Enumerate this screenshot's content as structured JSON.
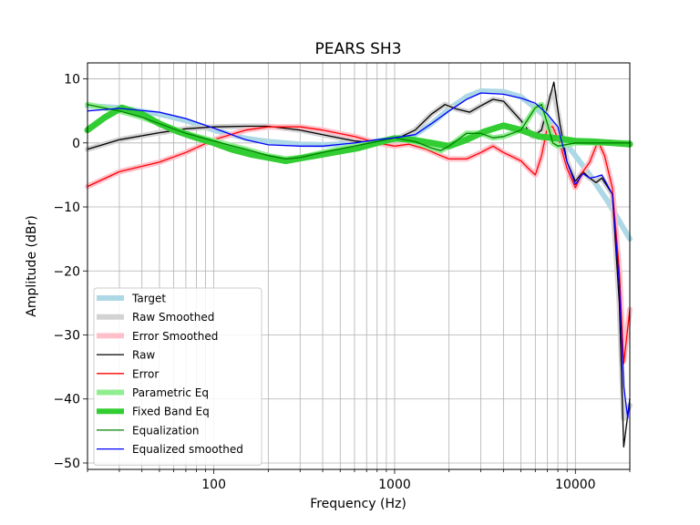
{
  "chart_data": {
    "type": "line",
    "title": "PEARS SH3",
    "xlabel": "Frequency (Hz)",
    "ylabel": "Amplitude (dBr)",
    "x_scale": "log",
    "xlim": [
      20,
      20000
    ],
    "ylim": [
      -51,
      12.5
    ],
    "grid": true,
    "legend_position": "lower-left",
    "x_tick_labels": [
      {
        "value": 100,
        "label": "100"
      },
      {
        "value": 1000,
        "label": "1000"
      },
      {
        "value": 10000,
        "label": "10000"
      }
    ],
    "y_tick_labels": [
      {
        "value": 10,
        "label": "10"
      },
      {
        "value": 0,
        "label": "0"
      },
      {
        "value": -10,
        "label": "−10"
      },
      {
        "value": -20,
        "label": "−20"
      },
      {
        "value": -30,
        "label": "−30"
      },
      {
        "value": -40,
        "label": "−40"
      },
      {
        "value": -50,
        "label": "−50"
      }
    ],
    "series": [
      {
        "name": "Target",
        "color": "#add8e6",
        "width": 6,
        "points": [
          [
            20,
            5.8
          ],
          [
            30,
            5.5
          ],
          [
            50,
            4.5
          ],
          [
            70,
            3.5
          ],
          [
            100,
            2.0
          ],
          [
            150,
            0.7
          ],
          [
            200,
            0.2
          ],
          [
            300,
            -0.2
          ],
          [
            400,
            -0.3
          ],
          [
            600,
            -0.1
          ],
          [
            800,
            0.3
          ],
          [
            1000,
            0.7
          ],
          [
            1300,
            1.3
          ],
          [
            1600,
            3.0
          ],
          [
            2000,
            5.3
          ],
          [
            2500,
            7.2
          ],
          [
            3000,
            8.1
          ],
          [
            4000,
            8.0
          ],
          [
            5000,
            7.2
          ],
          [
            6000,
            5.5
          ],
          [
            7000,
            3.8
          ],
          [
            8000,
            1.5
          ],
          [
            10000,
            -2.0
          ],
          [
            12000,
            -5.0
          ],
          [
            15000,
            -9.0
          ],
          [
            20000,
            -15.0
          ]
        ]
      },
      {
        "name": "Raw Smoothed",
        "color": "#d3d3d3",
        "width": 6,
        "points": [
          [
            20,
            -1.0
          ],
          [
            30,
            0.5
          ],
          [
            50,
            1.6
          ],
          [
            70,
            2.2
          ],
          [
            100,
            2.5
          ],
          [
            150,
            2.6
          ],
          [
            200,
            2.6
          ],
          [
            300,
            2.0
          ],
          [
            400,
            1.3
          ],
          [
            600,
            0.3
          ],
          [
            800,
            0.0
          ],
          [
            1000,
            0.5
          ],
          [
            1300,
            2.0
          ],
          [
            1600,
            4.5
          ],
          [
            1900,
            6.0
          ],
          [
            2200,
            5.3
          ],
          [
            2600,
            4.8
          ],
          [
            3000,
            5.8
          ],
          [
            3500,
            6.8
          ],
          [
            4000,
            6.5
          ],
          [
            5000,
            3.5
          ],
          [
            5800,
            1.0
          ],
          [
            6500,
            2.0
          ],
          [
            7200,
            7.0
          ],
          [
            7600,
            8.0
          ],
          [
            8200,
            3.0
          ],
          [
            9000,
            -3.0
          ],
          [
            10000,
            -6.0
          ],
          [
            11000,
            -4.5
          ],
          [
            12000,
            -5.5
          ],
          [
            13000,
            -6.0
          ],
          [
            14000,
            -5.5
          ],
          [
            16000,
            -8.0
          ],
          [
            17500,
            -25.0
          ],
          [
            18500,
            -43.0
          ],
          [
            20000,
            -41.0
          ]
        ]
      },
      {
        "name": "Error Smoothed",
        "color": "#ffc0cb",
        "width": 6,
        "points": [
          [
            20,
            -6.8
          ],
          [
            30,
            -4.5
          ],
          [
            50,
            -3.0
          ],
          [
            70,
            -1.5
          ],
          [
            100,
            0.5
          ],
          [
            150,
            2.0
          ],
          [
            200,
            2.5
          ],
          [
            300,
            2.5
          ],
          [
            400,
            2.0
          ],
          [
            600,
            1.0
          ],
          [
            800,
            0.0
          ],
          [
            1000,
            -0.5
          ],
          [
            1200,
            -0.2
          ],
          [
            1500,
            -1.0
          ],
          [
            1800,
            -2.0
          ],
          [
            2000,
            -2.5
          ],
          [
            2500,
            -2.5
          ],
          [
            3000,
            -1.5
          ],
          [
            3500,
            -0.5
          ],
          [
            4000,
            -1.5
          ],
          [
            5000,
            -2.8
          ],
          [
            5500,
            -4.0
          ],
          [
            6000,
            -5.0
          ],
          [
            6500,
            -2.0
          ],
          [
            7000,
            2.5
          ],
          [
            7500,
            2.5
          ],
          [
            8200,
            0.0
          ],
          [
            9000,
            -4.0
          ],
          [
            10000,
            -7.0
          ],
          [
            11000,
            -4.5
          ],
          [
            12000,
            -3.0
          ],
          [
            13000,
            -0.5
          ],
          [
            13500,
            0.0
          ],
          [
            14500,
            -2.0
          ],
          [
            16000,
            -7.0
          ],
          [
            17500,
            -20.0
          ],
          [
            18500,
            -34.0
          ],
          [
            20000,
            -26.0
          ]
        ]
      },
      {
        "name": "Raw",
        "color": "#000000",
        "width": 1.3,
        "points": [
          [
            20,
            -1.0
          ],
          [
            30,
            0.5
          ],
          [
            50,
            1.6
          ],
          [
            70,
            2.2
          ],
          [
            100,
            2.5
          ],
          [
            150,
            2.6
          ],
          [
            200,
            2.6
          ],
          [
            300,
            2.0
          ],
          [
            400,
            1.3
          ],
          [
            600,
            0.3
          ],
          [
            800,
            0.0
          ],
          [
            1000,
            0.5
          ],
          [
            1300,
            2.0
          ],
          [
            1600,
            4.5
          ],
          [
            1900,
            6.0
          ],
          [
            2200,
            5.3
          ],
          [
            2600,
            4.8
          ],
          [
            3000,
            5.8
          ],
          [
            3500,
            6.8
          ],
          [
            4000,
            6.5
          ],
          [
            5000,
            3.5
          ],
          [
            5800,
            1.0
          ],
          [
            6500,
            2.0
          ],
          [
            7200,
            7.0
          ],
          [
            7600,
            9.5
          ],
          [
            8200,
            3.0
          ],
          [
            9000,
            -3.0
          ],
          [
            10000,
            -6.0
          ],
          [
            11000,
            -4.5
          ],
          [
            12000,
            -5.5
          ],
          [
            13000,
            -6.2
          ],
          [
            14000,
            -5.5
          ],
          [
            16000,
            -8.0
          ],
          [
            17500,
            -25.0
          ],
          [
            18500,
            -47.5
          ],
          [
            20000,
            -40.0
          ]
        ]
      },
      {
        "name": "Error",
        "color": "#ff0000",
        "width": 1.3,
        "points": [
          [
            20,
            -6.8
          ],
          [
            30,
            -4.5
          ],
          [
            50,
            -3.0
          ],
          [
            70,
            -1.5
          ],
          [
            100,
            0.5
          ],
          [
            150,
            2.0
          ],
          [
            200,
            2.5
          ],
          [
            300,
            2.5
          ],
          [
            400,
            2.0
          ],
          [
            600,
            1.0
          ],
          [
            800,
            0.0
          ],
          [
            1000,
            -0.5
          ],
          [
            1200,
            -0.2
          ],
          [
            1500,
            -1.0
          ],
          [
            1800,
            -2.0
          ],
          [
            2000,
            -2.5
          ],
          [
            2500,
            -2.5
          ],
          [
            3000,
            -1.5
          ],
          [
            3500,
            -0.5
          ],
          [
            4000,
            -1.5
          ],
          [
            5000,
            -2.8
          ],
          [
            5500,
            -4.0
          ],
          [
            6000,
            -5.0
          ],
          [
            6500,
            -2.0
          ],
          [
            7000,
            2.5
          ],
          [
            7500,
            2.5
          ],
          [
            8200,
            0.0
          ],
          [
            9000,
            -4.0
          ],
          [
            10000,
            -7.0
          ],
          [
            11000,
            -4.5
          ],
          [
            12000,
            -3.0
          ],
          [
            13000,
            -0.5
          ],
          [
            13500,
            0.0
          ],
          [
            14500,
            -2.0
          ],
          [
            16000,
            -7.0
          ],
          [
            17500,
            -20.0
          ],
          [
            18500,
            -34.5
          ],
          [
            20000,
            -26.0
          ]
        ]
      },
      {
        "name": "Parametric Eq",
        "color": "#90ee90",
        "width": 6,
        "points": [
          [
            20,
            6.0
          ],
          [
            30,
            5.0
          ],
          [
            40,
            4.0
          ],
          [
            50,
            3.0
          ],
          [
            70,
            1.5
          ],
          [
            100,
            0.3
          ],
          [
            150,
            -1.0
          ],
          [
            200,
            -2.0
          ],
          [
            250,
            -2.5
          ],
          [
            300,
            -2.3
          ],
          [
            400,
            -1.5
          ],
          [
            600,
            -0.5
          ],
          [
            800,
            0.2
          ],
          [
            1000,
            0.8
          ],
          [
            1300,
            0.2
          ],
          [
            1600,
            -0.8
          ],
          [
            1800,
            -1.2
          ],
          [
            2000,
            -0.5
          ],
          [
            2500,
            1.5
          ],
          [
            3000,
            1.5
          ],
          [
            3500,
            0.8
          ],
          [
            4000,
            1.0
          ],
          [
            5000,
            2.0
          ],
          [
            6000,
            5.5
          ],
          [
            6500,
            6.0
          ],
          [
            7000,
            3.0
          ],
          [
            7500,
            0.0
          ],
          [
            8000,
            -0.5
          ],
          [
            10000,
            0.0
          ],
          [
            15000,
            0.0
          ],
          [
            20000,
            0.0
          ]
        ]
      },
      {
        "name": "Fixed Band Eq",
        "color": "#32cd32",
        "width": 7,
        "points": [
          [
            20,
            2.0
          ],
          [
            25,
            4.0
          ],
          [
            31,
            5.5
          ],
          [
            40,
            4.5
          ],
          [
            50,
            3.0
          ],
          [
            63,
            1.8
          ],
          [
            80,
            0.8
          ],
          [
            100,
            0.0
          ],
          [
            125,
            -1.0
          ],
          [
            160,
            -1.8
          ],
          [
            200,
            -2.3
          ],
          [
            250,
            -2.8
          ],
          [
            315,
            -2.3
          ],
          [
            400,
            -1.8
          ],
          [
            500,
            -1.3
          ],
          [
            630,
            -0.8
          ],
          [
            800,
            0.0
          ],
          [
            1000,
            0.7
          ],
          [
            1250,
            0.5
          ],
          [
            1600,
            0.0
          ],
          [
            2000,
            -0.5
          ],
          [
            2500,
            0.5
          ],
          [
            3150,
            1.8
          ],
          [
            4000,
            2.7
          ],
          [
            5000,
            2.0
          ],
          [
            6300,
            1.0
          ],
          [
            8000,
            0.7
          ],
          [
            10000,
            0.3
          ],
          [
            12500,
            0.2
          ],
          [
            16000,
            0.0
          ],
          [
            20000,
            -0.2
          ]
        ]
      },
      {
        "name": "Equalization",
        "color": "#008000",
        "width": 1.3,
        "points": [
          [
            20,
            6.0
          ],
          [
            30,
            5.0
          ],
          [
            40,
            4.0
          ],
          [
            50,
            3.0
          ],
          [
            70,
            1.5
          ],
          [
            100,
            0.3
          ],
          [
            150,
            -1.0
          ],
          [
            200,
            -2.0
          ],
          [
            250,
            -2.5
          ],
          [
            300,
            -2.3
          ],
          [
            400,
            -1.5
          ],
          [
            600,
            -0.5
          ],
          [
            800,
            0.2
          ],
          [
            1000,
            0.8
          ],
          [
            1300,
            0.2
          ],
          [
            1600,
            -0.8
          ],
          [
            1800,
            -1.2
          ],
          [
            2000,
            -0.5
          ],
          [
            2500,
            1.5
          ],
          [
            3000,
            1.5
          ],
          [
            3500,
            0.8
          ],
          [
            4000,
            1.0
          ],
          [
            5000,
            2.0
          ],
          [
            6000,
            5.5
          ],
          [
            6500,
            6.0
          ],
          [
            7000,
            3.0
          ],
          [
            7500,
            0.0
          ],
          [
            8000,
            -0.5
          ],
          [
            10000,
            0.0
          ],
          [
            15000,
            0.0
          ],
          [
            20000,
            0.0
          ]
        ]
      },
      {
        "name": "Equalized smoothed",
        "color": "#0000ff",
        "width": 1.3,
        "points": [
          [
            20,
            5.0
          ],
          [
            30,
            5.4
          ],
          [
            50,
            4.8
          ],
          [
            70,
            3.8
          ],
          [
            100,
            2.3
          ],
          [
            150,
            0.5
          ],
          [
            200,
            -0.3
          ],
          [
            300,
            -0.5
          ],
          [
            400,
            -0.5
          ],
          [
            600,
            0.0
          ],
          [
            800,
            0.5
          ],
          [
            1000,
            0.8
          ],
          [
            1300,
            1.3
          ],
          [
            1600,
            3.0
          ],
          [
            2000,
            5.0
          ],
          [
            2500,
            6.8
          ],
          [
            3000,
            7.8
          ],
          [
            4000,
            7.6
          ],
          [
            5000,
            7.0
          ],
          [
            6000,
            6.2
          ],
          [
            7000,
            4.5
          ],
          [
            8000,
            2.5
          ],
          [
            9000,
            -3.0
          ],
          [
            10000,
            -6.5
          ],
          [
            11000,
            -4.8
          ],
          [
            12000,
            -5.5
          ],
          [
            13000,
            -5.3
          ],
          [
            14000,
            -5.0
          ],
          [
            16000,
            -8.0
          ],
          [
            17500,
            -22.0
          ],
          [
            18500,
            -38.0
          ],
          [
            19500,
            -43.0
          ],
          [
            20000,
            -40.0
          ]
        ]
      }
    ]
  }
}
